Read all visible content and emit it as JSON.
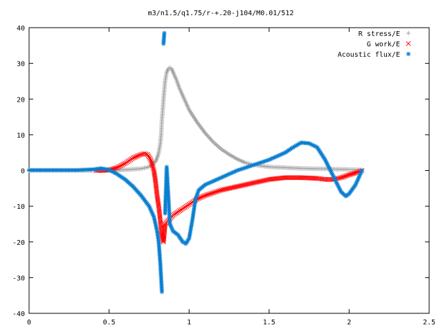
{
  "chart_data": {
    "type": "scatter",
    "title": "m3/n1.5/q1.75/r-+.20-j104/M0.01/512",
    "xlabel": "",
    "ylabel": "",
    "xlim": [
      0,
      2.5
    ],
    "ylim": [
      -40,
      40
    ],
    "x_ticks": [
      "0",
      "0.5",
      "1",
      "1.5",
      "2",
      "2.5"
    ],
    "y_ticks": [
      "40",
      "30",
      "20",
      "10",
      "0",
      "-10",
      "-20",
      "-30",
      "-40"
    ],
    "grid": false,
    "legend_position": "top-right",
    "series": [
      {
        "name": "R stress/E",
        "marker": "plus",
        "color": "#a0a0a0",
        "points": [
          [
            0.0,
            0
          ],
          [
            0.1,
            0
          ],
          [
            0.2,
            0
          ],
          [
            0.3,
            0
          ],
          [
            0.4,
            0
          ],
          [
            0.5,
            0.05
          ],
          [
            0.6,
            0.2
          ],
          [
            0.7,
            0.5
          ],
          [
            0.74,
            0.9
          ],
          [
            0.77,
            1.5
          ],
          [
            0.79,
            2.5
          ],
          [
            0.8,
            3.5
          ],
          [
            0.81,
            5
          ],
          [
            0.82,
            7.5
          ],
          [
            0.825,
            10
          ],
          [
            0.83,
            14
          ],
          [
            0.84,
            20
          ],
          [
            0.85,
            25
          ],
          [
            0.86,
            27.5
          ],
          [
            0.87,
            28.5
          ],
          [
            0.88,
            28.8
          ],
          [
            0.89,
            28.5
          ],
          [
            0.9,
            27.5
          ],
          [
            0.92,
            25.5
          ],
          [
            0.94,
            23
          ],
          [
            0.96,
            21
          ],
          [
            0.98,
            19
          ],
          [
            1.0,
            17
          ],
          [
            1.05,
            13.5
          ],
          [
            1.1,
            10.5
          ],
          [
            1.15,
            8
          ],
          [
            1.2,
            6
          ],
          [
            1.25,
            4.5
          ],
          [
            1.3,
            3.2
          ],
          [
            1.35,
            2.2
          ],
          [
            1.4,
            1.6
          ],
          [
            1.5,
            1.0
          ],
          [
            1.6,
            0.8
          ],
          [
            1.7,
            0.6
          ],
          [
            1.8,
            0.5
          ],
          [
            1.9,
            0.4
          ],
          [
            2.0,
            0.3
          ],
          [
            2.08,
            0.2
          ]
        ]
      },
      {
        "name": "G work/E",
        "marker": "cross",
        "color": "#ff0000",
        "points": [
          [
            0.42,
            0
          ],
          [
            0.45,
            0
          ],
          [
            0.5,
            0.1
          ],
          [
            0.55,
            0.8
          ],
          [
            0.6,
            2
          ],
          [
            0.65,
            3.5
          ],
          [
            0.7,
            4.5
          ],
          [
            0.72,
            4.7
          ],
          [
            0.74,
            4.5
          ],
          [
            0.76,
            3
          ],
          [
            0.78,
            0
          ],
          [
            0.79,
            -3
          ],
          [
            0.8,
            -7
          ],
          [
            0.81,
            -10
          ],
          [
            0.82,
            -14
          ],
          [
            0.83,
            -18
          ],
          [
            0.84,
            -20
          ],
          [
            0.85,
            -15
          ],
          [
            0.9,
            -12.5
          ],
          [
            0.95,
            -11
          ],
          [
            1.0,
            -9.5
          ],
          [
            1.05,
            -8
          ],
          [
            1.1,
            -7
          ],
          [
            1.2,
            -5.5
          ],
          [
            1.3,
            -4.5
          ],
          [
            1.4,
            -3.5
          ],
          [
            1.5,
            -2.5
          ],
          [
            1.6,
            -2
          ],
          [
            1.7,
            -2
          ],
          [
            1.8,
            -2.2
          ],
          [
            1.85,
            -2.5
          ],
          [
            1.9,
            -2.5
          ],
          [
            1.95,
            -2
          ],
          [
            2.0,
            -1.2
          ],
          [
            2.05,
            -0.5
          ],
          [
            2.08,
            0
          ]
        ]
      },
      {
        "name": "Acoustic flux/E",
        "marker": "star",
        "color": "#0a7fd0",
        "points": [
          [
            0.0,
            0.1
          ],
          [
            0.1,
            0.1
          ],
          [
            0.2,
            0.1
          ],
          [
            0.3,
            0.1
          ],
          [
            0.4,
            0.3
          ],
          [
            0.45,
            0.6
          ],
          [
            0.5,
            0.2
          ],
          [
            0.55,
            -1
          ],
          [
            0.6,
            -2.5
          ],
          [
            0.65,
            -4.5
          ],
          [
            0.7,
            -7
          ],
          [
            0.75,
            -10
          ],
          [
            0.78,
            -13
          ],
          [
            0.8,
            -17
          ],
          [
            0.81,
            -20
          ],
          [
            0.82,
            -26
          ],
          [
            0.83,
            -34
          ],
          [
            0.84,
            35.5
          ],
          [
            0.845,
            38.5
          ],
          [
            0.85,
            -12
          ],
          [
            0.86,
            1
          ],
          [
            0.87,
            -7
          ],
          [
            0.88,
            -15
          ],
          [
            0.9,
            -17
          ],
          [
            0.93,
            -18
          ],
          [
            0.96,
            -20
          ],
          [
            0.98,
            -20.5
          ],
          [
            1.0,
            -19
          ],
          [
            1.02,
            -14
          ],
          [
            1.04,
            -8
          ],
          [
            1.06,
            -5.5
          ],
          [
            1.1,
            -4
          ],
          [
            1.15,
            -3
          ],
          [
            1.2,
            -2
          ],
          [
            1.3,
            0
          ],
          [
            1.4,
            1.5
          ],
          [
            1.5,
            3
          ],
          [
            1.6,
            5
          ],
          [
            1.65,
            6.5
          ],
          [
            1.7,
            7.8
          ],
          [
            1.75,
            7.6
          ],
          [
            1.8,
            6.5
          ],
          [
            1.85,
            3
          ],
          [
            1.9,
            -1.5
          ],
          [
            1.95,
            -6
          ],
          [
            1.98,
            -7.2
          ],
          [
            2.0,
            -6.5
          ],
          [
            2.04,
            -4
          ],
          [
            2.08,
            0
          ]
        ]
      }
    ]
  }
}
